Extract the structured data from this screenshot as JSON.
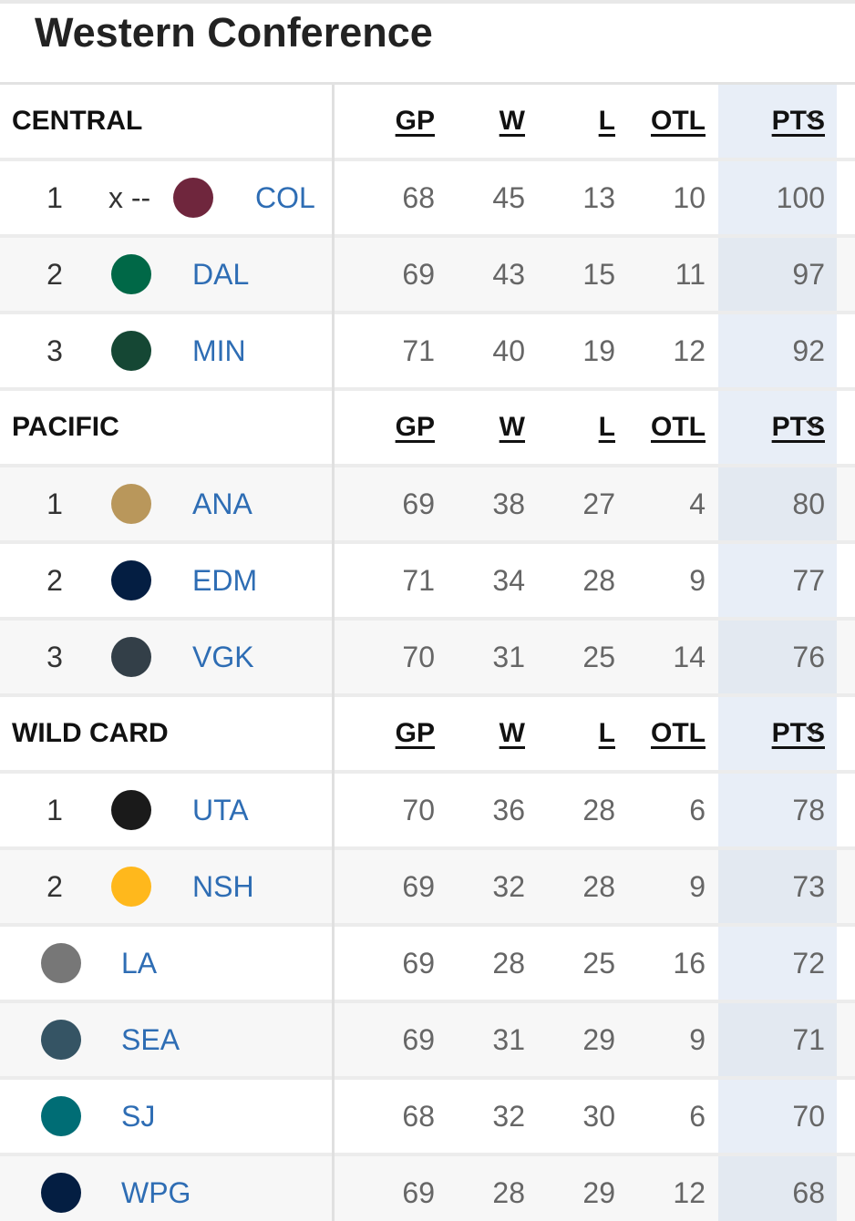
{
  "header": {
    "title": "Western Conference"
  },
  "sections": [
    {
      "name": "CENTRAL",
      "columns": [
        "GP",
        "W",
        "L",
        "OTL",
        "PTS"
      ],
      "rows": [
        {
          "rank": 1,
          "prefix": "x --",
          "team": "COL",
          "logo_color": "#6f263d",
          "gp": 68,
          "w": 45,
          "l": 13,
          "otl": 10,
          "pts": 100
        },
        {
          "rank": 2,
          "team": "DAL",
          "logo_color": "#006847",
          "gp": 69,
          "w": 43,
          "l": 15,
          "otl": 11,
          "pts": 97
        },
        {
          "rank": 3,
          "team": "MIN",
          "logo_color": "#154734",
          "gp": 71,
          "w": 40,
          "l": 19,
          "otl": 12,
          "pts": 92
        }
      ]
    },
    {
      "name": "PACIFIC",
      "columns": [
        "GP",
        "W",
        "L",
        "OTL",
        "PTS"
      ],
      "rows": [
        {
          "rank": 1,
          "team": "ANA",
          "logo_color": "#b9975b",
          "gp": 69,
          "w": 38,
          "l": 27,
          "otl": 4,
          "pts": 80
        },
        {
          "rank": 2,
          "team": "EDM",
          "logo_color": "#041e42",
          "gp": 71,
          "w": 34,
          "l": 28,
          "otl": 9,
          "pts": 77
        },
        {
          "rank": 3,
          "team": "VGK",
          "logo_color": "#333f48",
          "gp": 70,
          "w": 31,
          "l": 25,
          "otl": 14,
          "pts": 76
        }
      ]
    },
    {
      "name": "WILD CARD",
      "columns": [
        "GP",
        "W",
        "L",
        "OTL",
        "PTS"
      ],
      "rows": [
        {
          "rank": 1,
          "team": "UTA",
          "logo_color": "#1a1a1a",
          "gp": 70,
          "w": 36,
          "l": 28,
          "otl": 6,
          "pts": 78
        },
        {
          "rank": 2,
          "team": "NSH",
          "logo_color": "#ffb81c",
          "gp": 69,
          "w": 32,
          "l": 28,
          "otl": 9,
          "pts": 73
        },
        {
          "team": "LA",
          "logo_color": "#777777",
          "gp": 69,
          "w": 28,
          "l": 25,
          "otl": 16,
          "pts": 72
        },
        {
          "team": "SEA",
          "logo_color": "#355464",
          "gp": 69,
          "w": 31,
          "l": 29,
          "otl": 9,
          "pts": 71
        },
        {
          "team": "SJ",
          "logo_color": "#006d75",
          "gp": 68,
          "w": 32,
          "l": 30,
          "otl": 6,
          "pts": 70
        },
        {
          "team": "WPG",
          "logo_color": "#041e42",
          "gp": 69,
          "w": 28,
          "l": 29,
          "otl": 12,
          "pts": 68
        }
      ]
    }
  ]
}
